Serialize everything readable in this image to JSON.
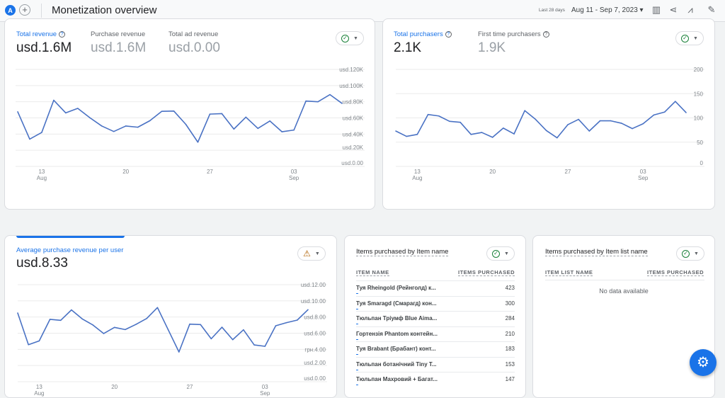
{
  "header": {
    "avatar_letter": "A",
    "add_label": "+",
    "title": "Monetization overview",
    "range_label": "Last 28 days",
    "date_range": "Aug 11 - Sep 7, 2023 ▾",
    "icons": [
      "customize-report-icon",
      "share-icon",
      "insights-icon",
      "edit-icon"
    ]
  },
  "revenue_card": {
    "metrics": [
      {
        "label": "Total revenue",
        "value": "usd.1.6M"
      },
      {
        "label": "Purchase revenue",
        "value": "usd.1.6M"
      },
      {
        "label": "Total ad revenue",
        "value": "usd.0.00"
      }
    ],
    "status": "ok"
  },
  "purchasers_card": {
    "metrics": [
      {
        "label": "Total purchasers",
        "value": "2.1K"
      },
      {
        "label": "First time purchasers",
        "value": "1.9K"
      }
    ],
    "status": "ok"
  },
  "arppu_card": {
    "label": "Average purchase revenue per user",
    "value": "usd.8.33",
    "status": "warning"
  },
  "items_card": {
    "title": "Items purchased by Item name",
    "col1": "ITEM NAME",
    "col2": "ITEMS PURCHASED",
    "rows": [
      {
        "name": "Туя Rheingold (Рейнголд) к...",
        "value": "423"
      },
      {
        "name": "Туя Smaragd (Смарагд) кон...",
        "value": "300"
      },
      {
        "name": "Тюльпан Тріумф Blue Aima...",
        "value": "284"
      },
      {
        "name": "Гортензія Phantom контейн...",
        "value": "210"
      },
      {
        "name": "Туя Brabant (Брабант) конт...",
        "value": "183"
      },
      {
        "name": "Тюльпан ботанічний Tiny T...",
        "value": "153"
      },
      {
        "name": "Тюльпан Махровий + Багат...",
        "value": "147"
      }
    ]
  },
  "item_list_card": {
    "title": "Items purchased by Item list name",
    "col1": "ITEM LIST NAME",
    "col2": "ITEMS PURCHASED",
    "empty": "No data available"
  },
  "fab_icon": "settings-sparkle-icon",
  "colors": {
    "accent": "#1a73e8",
    "line": "#4a72c4",
    "ok": "#188038",
    "warning": "#b06000"
  },
  "chart_data": [
    {
      "type": "line",
      "series": [
        {
          "name": "Total revenue",
          "values": [
            67.6,
            33.8,
            42,
            81.8,
            66.2,
            71.8,
            60.3,
            50,
            43.2,
            50,
            48.5,
            56.5,
            68.2,
            68.5,
            52,
            30,
            64.7,
            65.3,
            46.2,
            60.9,
            47,
            56.2,
            42.9,
            45,
            80.9,
            80,
            88.8,
            78
          ]
        }
      ],
      "x_ticks": [
        {
          "day": "13",
          "month": "Aug",
          "index": 2
        },
        {
          "day": "20",
          "month": "",
          "index": 9
        },
        {
          "day": "27",
          "month": "",
          "index": 16
        },
        {
          "day": "03",
          "month": "Sep",
          "index": 23
        }
      ],
      "y_ticks": [
        "usd.0.00",
        "usd.20K",
        "usd.40K",
        "usd.60K",
        "usd.80K",
        "usd.100K",
        "usd.120K"
      ],
      "ylim": [
        0,
        120
      ],
      "y_unit": "K usd",
      "grid": true
    },
    {
      "type": "line",
      "series": [
        {
          "name": "Total purchasers",
          "values": [
            73,
            62,
            66,
            107,
            104,
            93,
            91,
            66,
            70,
            60,
            79,
            67,
            115,
            97,
            74,
            59,
            86,
            97,
            73,
            94,
            94,
            89,
            78,
            88,
            106,
            112,
            134,
            111
          ]
        }
      ],
      "x_ticks": [
        {
          "day": "13",
          "month": "Aug",
          "index": 2
        },
        {
          "day": "20",
          "month": "",
          "index": 9
        },
        {
          "day": "27",
          "month": "",
          "index": 16
        },
        {
          "day": "03",
          "month": "Sep",
          "index": 23
        }
      ],
      "y_ticks": [
        "0",
        "50",
        "100",
        "150",
        "200"
      ],
      "ylim": [
        0,
        200
      ],
      "grid": true
    },
    {
      "type": "line",
      "series": [
        {
          "name": "Average purchase revenue per user",
          "values": [
            8.5,
            4.58,
            5.05,
            7.71,
            7.59,
            8.88,
            7.77,
            7.01,
            5.96,
            6.72,
            6.45,
            7.09,
            7.82,
            9.17,
            6.42,
            3.68,
            7.12,
            7.07,
            5.31,
            6.74,
            5.2,
            6.42,
            4.55,
            4.38,
            6.92,
            7.3,
            7.62,
            8.91
          ]
        }
      ],
      "x_ticks": [
        {
          "day": "13",
          "month": "Aug",
          "index": 2
        },
        {
          "day": "20",
          "month": "",
          "index": 9
        },
        {
          "day": "27",
          "month": "",
          "index": 16
        },
        {
          "day": "03",
          "month": "Sep",
          "index": 23
        }
      ],
      "y_ticks": [
        "usd.0.00",
        "usd.2.00",
        "грн.4.00",
        "usd.6.00",
        "usd.8.00",
        "usd.10.00",
        "usd.12.00"
      ],
      "ylim": [
        0,
        12
      ],
      "grid": true
    }
  ]
}
